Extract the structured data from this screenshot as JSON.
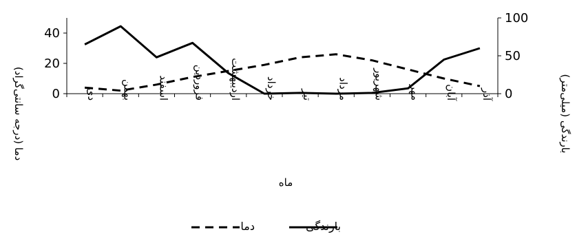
{
  "chart_data": {
    "type": "line",
    "categories": [
      "دی",
      "بهمن",
      "اسفند",
      "فروردین",
      "اردیبهشت",
      "خرداد",
      "تیر",
      "مرداد",
      "شهریور",
      "مهر",
      "آبان",
      "آذر"
    ],
    "series": [
      {
        "name": "بارندگی",
        "axis": "right",
        "style": "solid",
        "color": "#000000",
        "values": [
          65,
          89,
          48,
          67,
          27,
          0,
          1,
          0,
          1,
          7,
          45,
          60
        ]
      },
      {
        "name": "دما",
        "axis": "left",
        "style": "dashed",
        "color": "#000000",
        "values": [
          4,
          2,
          6,
          11,
          15,
          19,
          24,
          26,
          22,
          16,
          10,
          5
        ]
      }
    ],
    "xlabel": "ماه",
    "ylabel_left": "دما (درجه سانتی‌گراد)",
    "ylabel_right": "بارندگی (میلی‌متر)",
    "ylim_left": [
      0,
      50
    ],
    "yticks_left": [
      0,
      20,
      40
    ],
    "ylim_right": [
      0,
      100
    ],
    "yticks_right": [
      0,
      50,
      100
    ],
    "grid": false,
    "legend_position": "bottom",
    "legend_order": [
      "دما",
      "بارندگی"
    ]
  }
}
